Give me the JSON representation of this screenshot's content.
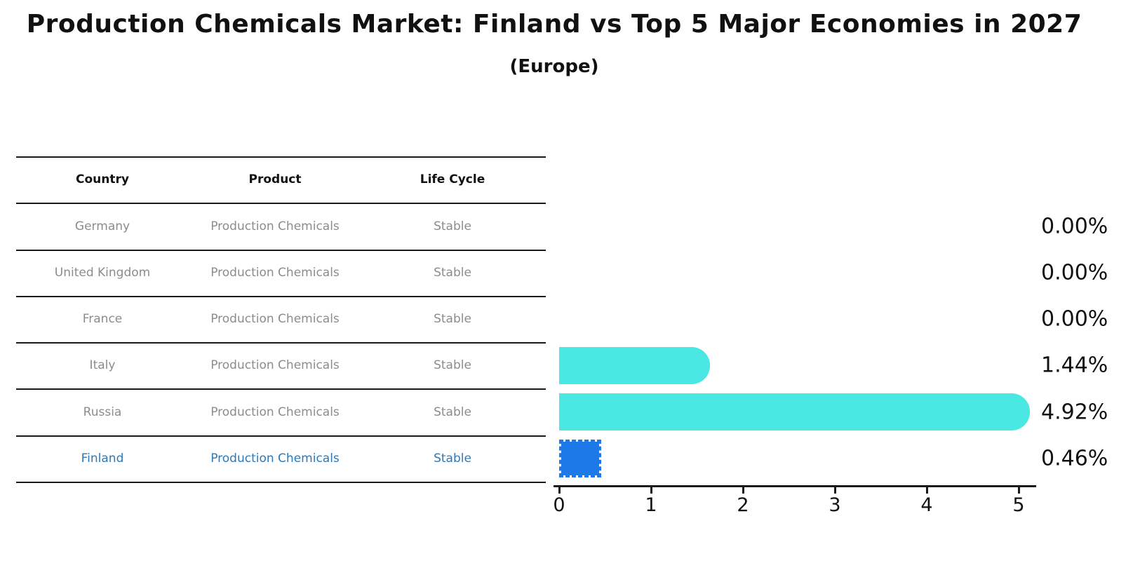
{
  "title": "Production Chemicals Market: Finland vs Top 5 Major Economies in 2027",
  "subtitle": "(Europe)",
  "table": {
    "headers": [
      "Country",
      "Product",
      "Life Cycle"
    ],
    "rows": [
      {
        "country": "Germany",
        "product": "Production Chemicals",
        "life_cycle": "Stable",
        "highlight": false
      },
      {
        "country": "United Kingdom",
        "product": "Production Chemicals",
        "life_cycle": "Stable",
        "highlight": false
      },
      {
        "country": "France",
        "product": "Production Chemicals",
        "life_cycle": "Stable",
        "highlight": false
      },
      {
        "country": "Italy",
        "product": "Production Chemicals",
        "life_cycle": "Stable",
        "highlight": false
      },
      {
        "country": "Russia",
        "product": "Production Chemicals",
        "life_cycle": "Stable",
        "highlight": false
      },
      {
        "country": "Finland",
        "product": "Production Chemicals",
        "life_cycle": "Stable",
        "highlight": true
      }
    ]
  },
  "chart_data": {
    "type": "bar",
    "orientation": "horizontal",
    "title": "Production Chemicals Market: Finland vs Top 5 Major Economies in 2027 (Europe)",
    "categories": [
      "Germany",
      "United Kingdom",
      "France",
      "Italy",
      "Russia",
      "Finland"
    ],
    "values": [
      0.0,
      0.0,
      0.0,
      1.44,
      4.92,
      0.46
    ],
    "value_labels": [
      "0.00%",
      "0.00%",
      "0.00%",
      "1.44%",
      "4.92%",
      "0.46%"
    ],
    "xlabel": "",
    "ylabel": "",
    "xlim": [
      0,
      5.2
    ],
    "x_ticks": [
      "0",
      "1",
      "2",
      "3",
      "4",
      "5"
    ],
    "grid": false,
    "legend": "none",
    "highlight_index": 5
  },
  "colors": {
    "background": "#ffffff",
    "bar_default": "#49e8e2",
    "bar_highlight": "#1e79e8",
    "highlight_row_text": "#2e78b8",
    "table_row_text": "#8c8c8c",
    "header_text": "#111111",
    "line": "#1a1a1a"
  }
}
